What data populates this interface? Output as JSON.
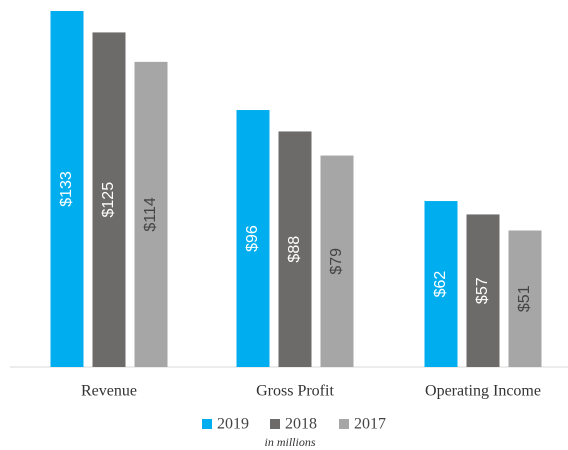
{
  "chart_data": {
    "type": "bar",
    "categories": [
      "Revenue",
      "Gross Profit",
      "Operating Income"
    ],
    "series": [
      {
        "name": "2019",
        "color": "#00aeef",
        "values": [
          133,
          96,
          62
        ],
        "value_labels": [
          "$133",
          "$96",
          "$62"
        ]
      },
      {
        "name": "2018",
        "color": "#6d6a6a",
        "values": [
          125,
          88,
          57
        ],
        "value_labels": [
          "$125",
          "$88",
          "$57"
        ]
      },
      {
        "name": "2017",
        "color": "#a6a6a6",
        "values": [
          114,
          79,
          51
        ],
        "value_labels": [
          "$114",
          "$79",
          "$51"
        ]
      }
    ],
    "annotation": "in millions"
  }
}
